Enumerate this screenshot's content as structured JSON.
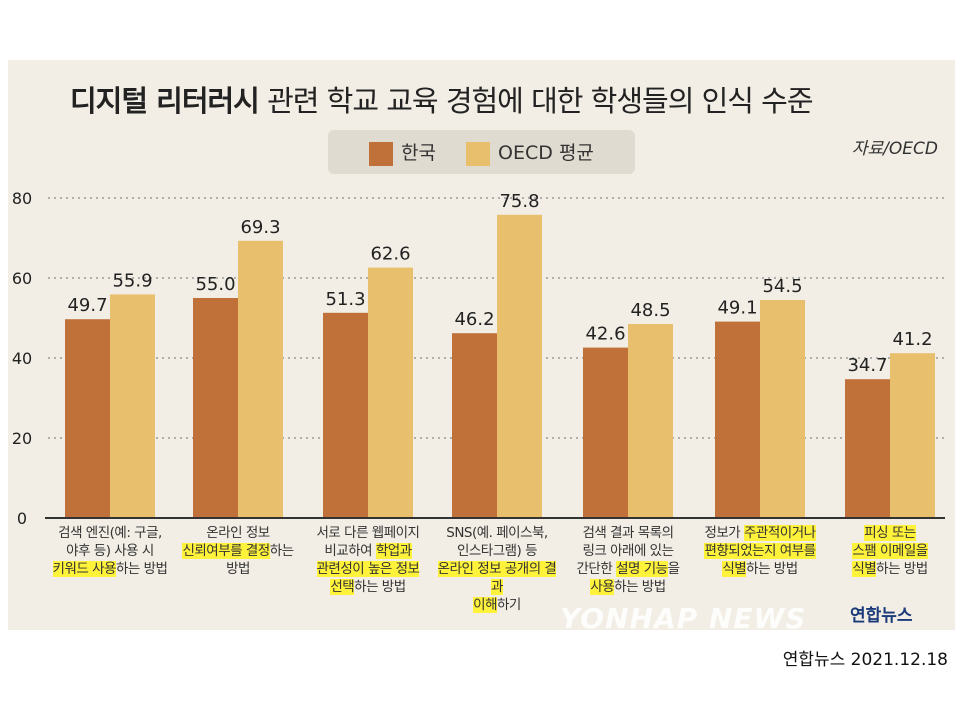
{
  "title": {
    "bold": "디지털 리터러시",
    "rest": " 관련 학교 교육 경험에 대한 학생들의 인식 수준"
  },
  "source": "자료/OECD",
  "footer": "연합뉴스 2021.12.18",
  "watermark": "YONHAP NEWS",
  "logo": "연합뉴스",
  "chart_data": {
    "type": "bar",
    "ylim": [
      0,
      80
    ],
    "yticks": [
      "0",
      "20",
      "40",
      "60",
      "80"
    ],
    "grid": true,
    "legend_placement": "top-center",
    "series": [
      {
        "name": "한국",
        "color": "#c0713a",
        "values": [
          49.7,
          55.0,
          51.3,
          46.2,
          42.6,
          49.1,
          34.7
        ],
        "labels": [
          "49.7",
          "55.0",
          "51.3",
          "46.2",
          "42.6",
          "49.1",
          "34.7"
        ]
      },
      {
        "name": "OECD 평균",
        "color": "#e8bf6c",
        "values": [
          55.9,
          69.3,
          62.6,
          75.8,
          48.5,
          54.5,
          41.2
        ],
        "labels": [
          "55.9",
          "69.3",
          "62.6",
          "75.8",
          "48.5",
          "54.5",
          "41.2"
        ]
      }
    ],
    "categories": [
      [
        [
          {
            "t": "검색 엔진(예: 구글,"
          }
        ],
        [
          {
            "t": "야후 등) 사용 시"
          }
        ],
        [
          {
            "t": "키워드 사용",
            "h": true
          },
          {
            "t": "하는 방법"
          }
        ]
      ],
      [
        [
          {
            "t": "온라인 정보"
          }
        ],
        [
          {
            "t": "신뢰여부를 결정",
            "h": true
          },
          {
            "t": "하는"
          }
        ],
        [
          {
            "t": "방법"
          }
        ]
      ],
      [
        [
          {
            "t": "서로 다른 웹페이지"
          }
        ],
        [
          {
            "t": "비교하여 "
          },
          {
            "t": "학업과",
            "h": true
          }
        ],
        [
          {
            "t": "관련성이 높은 정보",
            "h": true
          }
        ],
        [
          {
            "t": "선택",
            "h": true
          },
          {
            "t": "하는 방법"
          }
        ]
      ],
      [
        [
          {
            "t": "SNS(예. 페이스북,"
          }
        ],
        [
          {
            "t": "인스타그램) 등"
          }
        ],
        [
          {
            "t": "온라인 정보 공개의 결과",
            "h": true
          }
        ],
        [
          {
            "t": "이해",
            "h": true
          },
          {
            "t": "하기"
          }
        ]
      ],
      [
        [
          {
            "t": "검색 결과 목록의"
          }
        ],
        [
          {
            "t": "링크 아래에 있는"
          }
        ],
        [
          {
            "t": "간단한 "
          },
          {
            "t": "설명 기능",
            "h": true
          },
          {
            "t": "을"
          }
        ],
        [
          {
            "t": "사용",
            "h": true
          },
          {
            "t": "하는 방법"
          }
        ]
      ],
      [
        [
          {
            "t": "정보가 "
          },
          {
            "t": "주관적이거나",
            "h": true
          }
        ],
        [
          {
            "t": "편향되었는지 여부를",
            "h": true
          }
        ],
        [
          {
            "t": "식별",
            "h": true
          },
          {
            "t": "하는 방법"
          }
        ]
      ],
      [
        [
          {
            "t": "피싱 또는",
            "h": true
          }
        ],
        [
          {
            "t": "스팸 이메일을",
            "h": true
          }
        ],
        [
          {
            "t": "식별",
            "h": true
          },
          {
            "t": "하는 방법"
          }
        ]
      ]
    ]
  }
}
